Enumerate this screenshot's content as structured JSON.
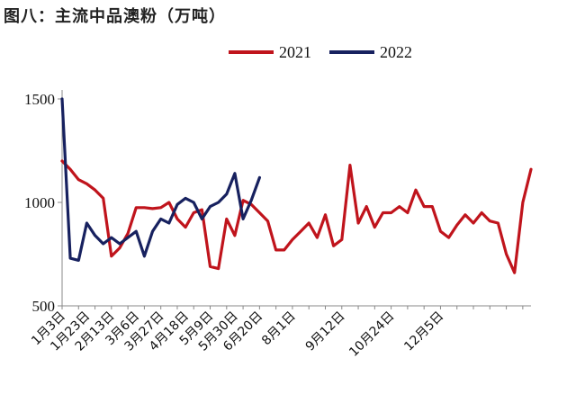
{
  "title": "图八：主流中品澳粉（万吨）",
  "chart_data": {
    "type": "line",
    "title": "图八：主流中品澳粉（万吨）",
    "ylim": [
      500,
      1500
    ],
    "y_ticks": [
      500,
      1000,
      1500
    ],
    "x_tick_labels": [
      "1月3日",
      "1月23日",
      "2月13日",
      "3月6日",
      "3月27日",
      "4月18日",
      "5月9日",
      "5月30日",
      "6月20日",
      "8月1日",
      "9月12日",
      "10月24日",
      "12月5日"
    ],
    "x_tick_weeks": [
      0,
      3,
      6,
      9,
      12,
      15,
      18,
      21,
      24,
      28,
      34,
      40,
      46
    ],
    "legend_position": "top",
    "series": [
      {
        "name": "2021",
        "color": "#c0141c",
        "values": [
          1200,
          1160,
          1110,
          1090,
          1060,
          1020,
          740,
          780,
          850,
          975,
          975,
          970,
          975,
          1000,
          920,
          880,
          950,
          965,
          690,
          680,
          920,
          840,
          1010,
          990,
          950,
          910,
          770,
          770,
          820,
          860,
          900,
          830,
          940,
          790,
          820,
          1180,
          900,
          980,
          880,
          950,
          950,
          980,
          950,
          1060,
          980,
          980,
          860,
          830,
          890,
          940,
          900,
          950,
          910,
          900,
          750,
          660,
          1000,
          1160
        ]
      },
      {
        "name": "2022",
        "color": "#17215f",
        "values": [
          1500,
          730,
          720,
          900,
          840,
          800,
          830,
          800,
          830,
          860,
          740,
          860,
          920,
          900,
          990,
          1020,
          1000,
          920,
          980,
          1000,
          1040,
          1140,
          920,
          1010,
          1120
        ]
      }
    ]
  }
}
